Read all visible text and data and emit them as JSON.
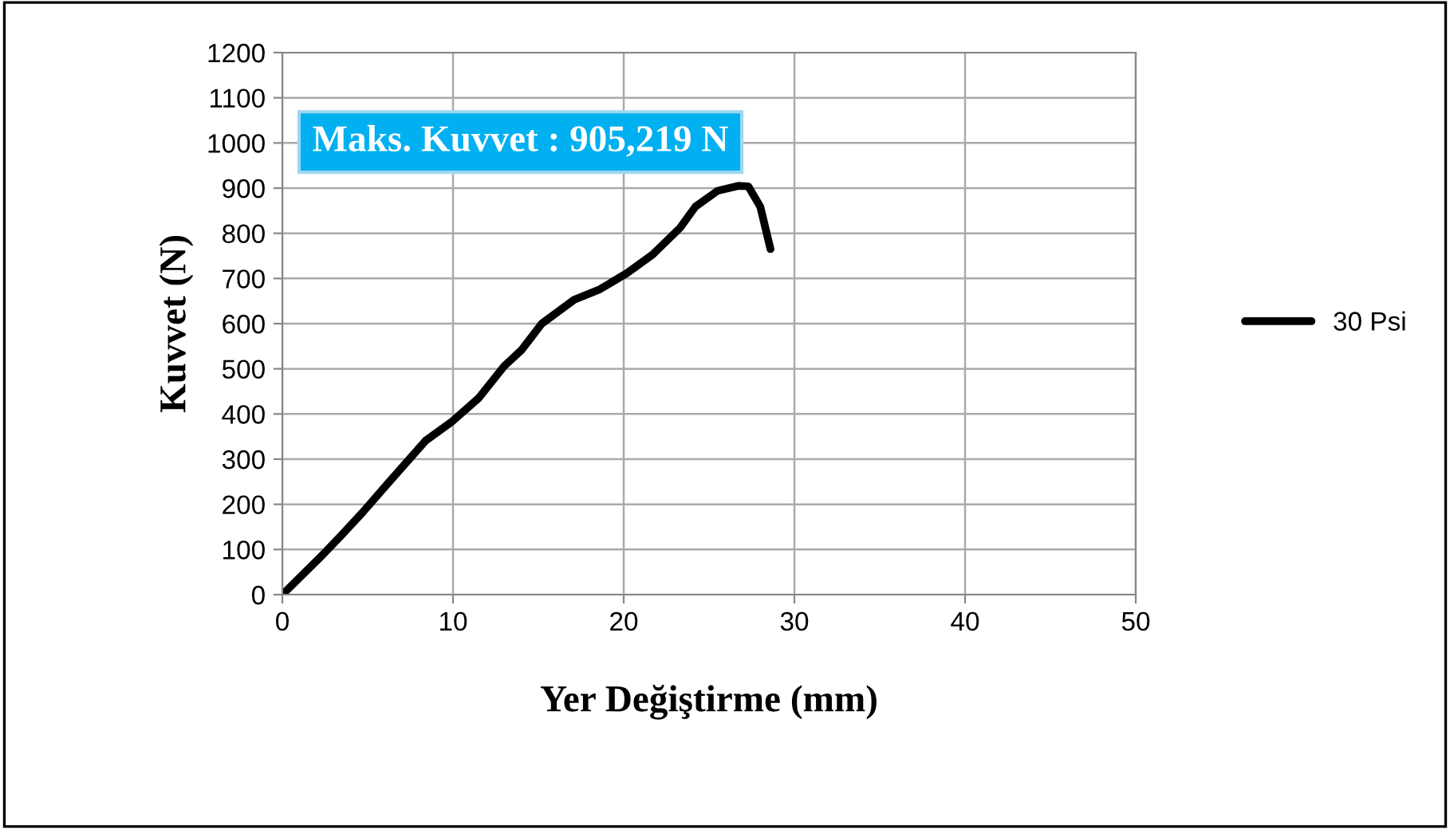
{
  "chart_data": {
    "type": "line",
    "xlabel": "Yer Değiştirme (mm)",
    "ylabel": "Kuvvet (N)",
    "annotations": [
      "Maks. Kuvvet : 905,219 N"
    ],
    "series": [
      {
        "name": "30 Psi",
        "color": "#000000",
        "x": [
          0,
          2.2,
          3.4,
          4.7,
          6.2,
          8.4,
          9.9,
          11.5,
          13.0,
          14.0,
          15.2,
          17.1,
          18.6,
          20.2,
          21.7,
          23.3,
          24.2,
          25.5,
          26.7,
          27.3,
          28.0,
          28.6
        ],
        "values": [
          0,
          82,
          129,
          182,
          247,
          341,
          382,
          435,
          506,
          541,
          600,
          653,
          676,
          712,
          753,
          812,
          859,
          894,
          905,
          904,
          859,
          765
        ]
      }
    ],
    "xlim": [
      0,
      50
    ],
    "xticks": [
      0,
      10,
      20,
      30,
      40,
      50
    ],
    "ylim": [
      0,
      1200
    ],
    "yticks": [
      0,
      100,
      200,
      300,
      400,
      500,
      600,
      700,
      800,
      900,
      1000,
      1100,
      1200
    ],
    "grid": true,
    "legend": "right",
    "marker": "none",
    "line_style": "solid"
  }
}
